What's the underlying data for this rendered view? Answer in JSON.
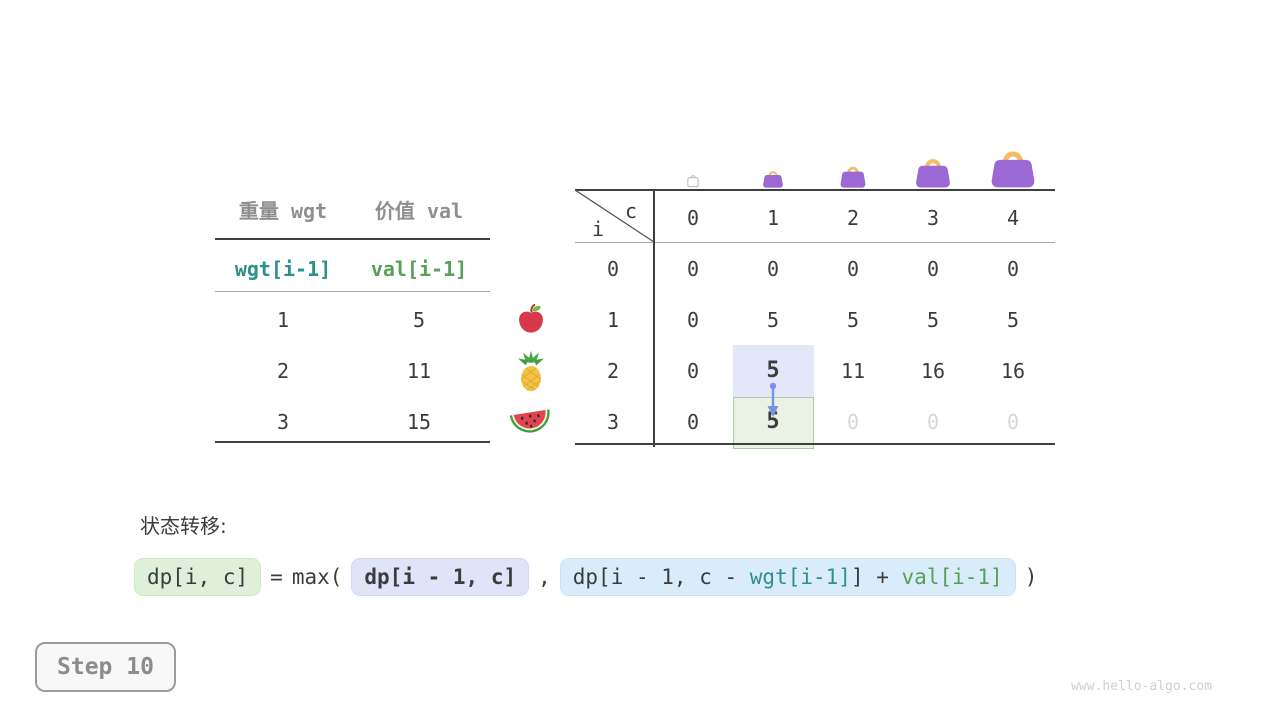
{
  "colors": {
    "teal": "#2e8f8f",
    "green": "#58a058",
    "text": "#3c3c3c",
    "dim_text": "#d6d6d6",
    "gray_header": "#8f8f8f",
    "highlight_blue_bg": "#e3e7f9",
    "highlight_green_bg": "#e9f2e5",
    "highlight_green_border": "#abcda5",
    "formula_green_bg": "#def0d9",
    "formula_lavender_bg": "#e0e4f9",
    "formula_blue_bg": "#d9ecf9",
    "arrow_blue": "#7b8fe6",
    "bag_purple": "#9c68d4",
    "bag_handle": "#f2bd63",
    "empty_bag_gray": "#c3c3c3"
  },
  "items_table": {
    "headers": [
      "重量 wgt",
      "价值 val"
    ],
    "index_row": [
      "wgt[i-1]",
      "val[i-1]"
    ],
    "rows": [
      [
        "1",
        "5"
      ],
      [
        "2",
        "11"
      ],
      [
        "3",
        "15"
      ]
    ]
  },
  "fruits": [
    "apple",
    "pineapple",
    "watermelon"
  ],
  "dp_table": {
    "corner": {
      "row": "i",
      "col": "c"
    },
    "col_headers": [
      "0",
      "1",
      "2",
      "3",
      "4"
    ],
    "rows": [
      {
        "label": "0",
        "cells": [
          {
            "v": "0"
          },
          {
            "v": "0"
          },
          {
            "v": "0"
          },
          {
            "v": "0"
          },
          {
            "v": "0"
          }
        ]
      },
      {
        "label": "1",
        "cells": [
          {
            "v": "0"
          },
          {
            "v": "5"
          },
          {
            "v": "5"
          },
          {
            "v": "5"
          },
          {
            "v": "5"
          }
        ]
      },
      {
        "label": "2",
        "cells": [
          {
            "v": "0"
          },
          {
            "v": "5",
            "style": "highlight-blue"
          },
          {
            "v": "11"
          },
          {
            "v": "16"
          },
          {
            "v": "16"
          }
        ]
      },
      {
        "label": "3",
        "cells": [
          {
            "v": "0"
          },
          {
            "v": "5",
            "style": "highlight-green"
          },
          {
            "v": "0",
            "style": "dim"
          },
          {
            "v": "0",
            "style": "dim"
          },
          {
            "v": "0",
            "style": "dim"
          }
        ]
      }
    ]
  },
  "bags": [
    {
      "col": 0,
      "type": "empty"
    },
    {
      "col": 1,
      "type": "purple"
    },
    {
      "col": 2,
      "type": "purple"
    },
    {
      "col": 3,
      "type": "purple"
    },
    {
      "col": 4,
      "type": "purple"
    }
  ],
  "formula": {
    "section_label": "状态转移:",
    "lhs": "dp[i, c]",
    "equals": "=",
    "max_open": "max(",
    "arg1": "dp[i - 1, c]",
    "comma": ",",
    "arg2_parts": {
      "prefix": "dp[i - 1, c - ",
      "wgt": "wgt[i-1]",
      "bracket": "]",
      "plus": " + ",
      "val": "val[i-1]"
    },
    "close": ")"
  },
  "step_label": "Step 10",
  "watermark": "www.hello-algo.com"
}
